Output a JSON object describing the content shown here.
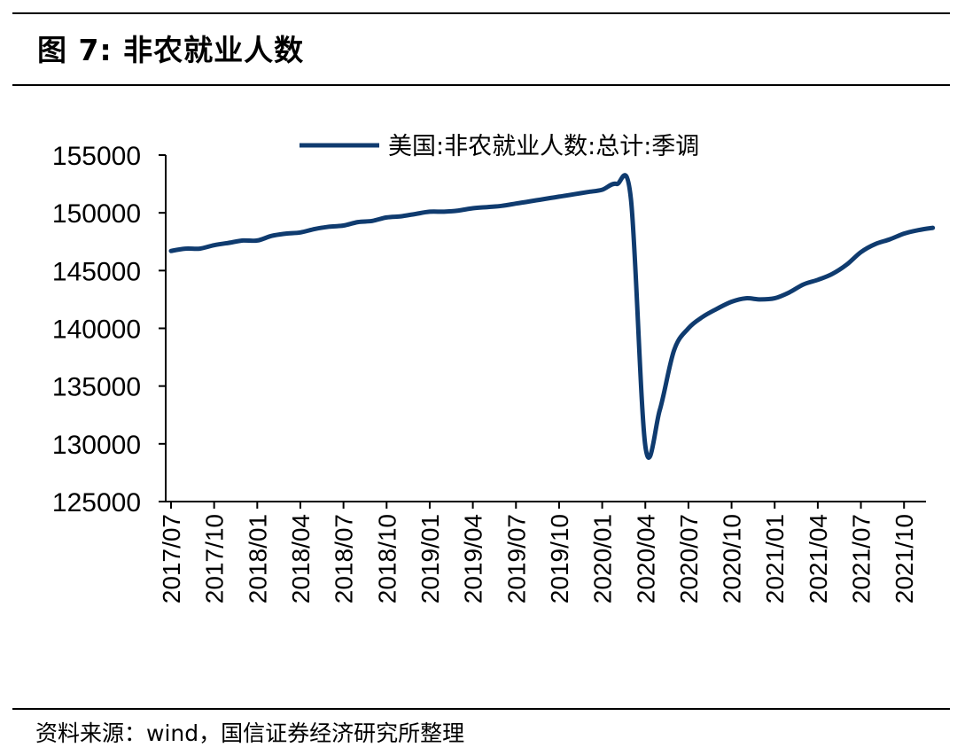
{
  "figure_title": "图 7:  非农就业人数",
  "source_note": "资料来源：wind，国信证券经济研究所整理",
  "colors": {
    "line": "#0f3b6f",
    "axis": "#000000"
  },
  "chart_data": {
    "type": "line",
    "title": "",
    "xlabel": "",
    "ylabel": "",
    "ylim": [
      125000,
      155000
    ],
    "y_ticks": [
      125000,
      130000,
      135000,
      140000,
      145000,
      150000,
      155000
    ],
    "x_tick_labels": [
      "2017/07",
      "2017/10",
      "2018/01",
      "2018/04",
      "2018/07",
      "2018/10",
      "2019/01",
      "2019/04",
      "2019/07",
      "2019/10",
      "2020/01",
      "2020/04",
      "2020/07",
      "2020/10",
      "2021/01",
      "2021/04",
      "2021/07",
      "2021/10"
    ],
    "legend_position": "top-center",
    "grid": false,
    "series": [
      {
        "name": "美国:非农就业人数:总计:季调",
        "x": [
          "2017/07",
          "2017/08",
          "2017/09",
          "2017/10",
          "2017/11",
          "2017/12",
          "2018/01",
          "2018/02",
          "2018/03",
          "2018/04",
          "2018/05",
          "2018/06",
          "2018/07",
          "2018/08",
          "2018/09",
          "2018/10",
          "2018/11",
          "2018/12",
          "2019/01",
          "2019/02",
          "2019/03",
          "2019/04",
          "2019/05",
          "2019/06",
          "2019/07",
          "2019/08",
          "2019/09",
          "2019/10",
          "2019/11",
          "2019/12",
          "2020/01",
          "2020/02",
          "2020/03",
          "2020/04",
          "2020/05",
          "2020/06",
          "2020/07",
          "2020/08",
          "2020/09",
          "2020/10",
          "2020/11",
          "2020/12",
          "2021/01",
          "2021/02",
          "2021/03",
          "2021/04",
          "2021/05",
          "2021/06",
          "2021/07",
          "2021/08",
          "2021/09",
          "2021/10",
          "2021/11",
          "2021/12"
        ],
        "values": [
          146700,
          146900,
          146900,
          147200,
          147400,
          147600,
          147600,
          148000,
          148200,
          148300,
          148600,
          148800,
          148900,
          149200,
          149300,
          149600,
          149700,
          149900,
          150100,
          150100,
          150200,
          150400,
          150500,
          150600,
          150800,
          151000,
          151200,
          151400,
          151600,
          151800,
          152000,
          152500,
          151200,
          129800,
          132900,
          138100,
          140000,
          141000,
          141700,
          142300,
          142600,
          142500,
          142600,
          143100,
          143800,
          144200,
          144700,
          145500,
          146600,
          147300,
          147700,
          148200,
          148500,
          148700
        ]
      }
    ]
  }
}
